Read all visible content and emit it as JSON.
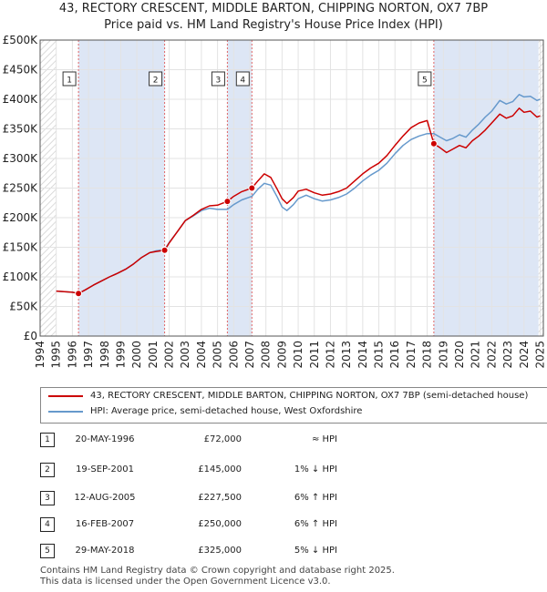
{
  "chart_data": {
    "type": "line",
    "title": "43, RECTORY CRESCENT, MIDDLE BARTON, CHIPPING NORTON, OX7 7BP",
    "subtitle": "Price paid vs. HM Land Registry's House Price Index (HPI)",
    "xlim": [
      1994,
      2025.2
    ],
    "ylim": [
      0,
      500000
    ],
    "yticks": [
      0,
      50000,
      100000,
      150000,
      200000,
      250000,
      300000,
      350000,
      400000,
      450000,
      500000
    ],
    "ytick_labels": [
      "£0",
      "£50K",
      "£100K",
      "£150K",
      "£200K",
      "£250K",
      "£300K",
      "£350K",
      "£400K",
      "£450K",
      "£500K"
    ],
    "xticks": [
      1994,
      1995,
      1996,
      1997,
      1998,
      1999,
      2000,
      2001,
      2002,
      2003,
      2004,
      2005,
      2006,
      2007,
      2008,
      2009,
      2010,
      2011,
      2012,
      2013,
      2014,
      2015,
      2016,
      2017,
      2018,
      2019,
      2020,
      2021,
      2022,
      2023,
      2024,
      2025
    ],
    "grid": true,
    "series": [
      {
        "name": "43, RECTORY CRESCENT, MIDDLE BARTON, CHIPPING NORTON, OX7 7BP (semi-detached house)",
        "color": "#cc0000",
        "x": [
          1995.0,
          1995.5,
          1996.0,
          1996.38,
          1996.8,
          1997.3,
          1997.8,
          1998.3,
          1998.8,
          1999.3,
          1999.8,
          2000.3,
          2000.8,
          2001.2,
          2001.72,
          2002.0,
          2002.5,
          2003.0,
          2003.5,
          2004.0,
          2004.5,
          2005.0,
          2005.61,
          2006.0,
          2006.5,
          2007.13,
          2007.5,
          2007.9,
          2008.3,
          2008.7,
          2009.0,
          2009.3,
          2009.7,
          2010.0,
          2010.5,
          2011.0,
          2011.5,
          2012.0,
          2012.5,
          2013.0,
          2013.5,
          2014.0,
          2014.5,
          2015.0,
          2015.5,
          2016.0,
          2016.5,
          2017.0,
          2017.5,
          2018.0,
          2018.41,
          2018.8,
          2019.2,
          2019.6,
          2020.0,
          2020.4,
          2020.8,
          2021.2,
          2021.6,
          2022.0,
          2022.5,
          2022.9,
          2023.3,
          2023.7,
          2024.0,
          2024.4,
          2024.8,
          2025.0
        ],
        "values": [
          76000,
          75000,
          74000,
          72000,
          78000,
          86000,
          93000,
          100000,
          106000,
          113000,
          122000,
          133000,
          141000,
          143000,
          145000,
          157000,
          176000,
          195000,
          204000,
          214000,
          220000,
          221000,
          227500,
          236000,
          244000,
          250000,
          262000,
          274000,
          268000,
          248000,
          232000,
          224000,
          234000,
          245000,
          248000,
          242000,
          238000,
          240000,
          244000,
          250000,
          262000,
          274000,
          284000,
          292000,
          305000,
          322000,
          338000,
          352000,
          360000,
          364000,
          325000,
          318000,
          310000,
          316000,
          322000,
          318000,
          330000,
          338000,
          348000,
          360000,
          375000,
          368000,
          372000,
          385000,
          378000,
          380000,
          370000,
          372000
        ]
      },
      {
        "name": "HPI: Average price, semi-detached house, West Oxfordshire",
        "color": "#6699cc",
        "x": [
          1995.0,
          1995.5,
          1996.0,
          1996.38,
          1996.8,
          1997.3,
          1997.8,
          1998.3,
          1998.8,
          1999.3,
          1999.8,
          2000.3,
          2000.8,
          2001.2,
          2001.72,
          2002.0,
          2002.5,
          2003.0,
          2003.5,
          2004.0,
          2004.5,
          2005.0,
          2005.61,
          2006.0,
          2006.5,
          2007.13,
          2007.5,
          2007.9,
          2008.3,
          2008.7,
          2009.0,
          2009.3,
          2009.7,
          2010.0,
          2010.5,
          2011.0,
          2011.5,
          2012.0,
          2012.5,
          2013.0,
          2013.5,
          2014.0,
          2014.5,
          2015.0,
          2015.5,
          2016.0,
          2016.5,
          2017.0,
          2017.5,
          2018.0,
          2018.41,
          2018.8,
          2019.2,
          2019.6,
          2020.0,
          2020.4,
          2020.8,
          2021.2,
          2021.6,
          2022.0,
          2022.5,
          2022.9,
          2023.3,
          2023.7,
          2024.0,
          2024.4,
          2024.8,
          2025.0
        ],
        "values": [
          76000,
          75000,
          74000,
          72000,
          78000,
          86000,
          93000,
          100000,
          106000,
          113000,
          122000,
          133000,
          141000,
          144000,
          146000,
          158000,
          176000,
          195000,
          203000,
          212000,
          216000,
          214000,
          214000,
          222000,
          230000,
          236000,
          248000,
          258000,
          255000,
          235000,
          218000,
          212000,
          222000,
          232000,
          238000,
          232000,
          228000,
          230000,
          234000,
          240000,
          250000,
          262000,
          272000,
          280000,
          292000,
          308000,
          322000,
          332000,
          338000,
          342000,
          342000,
          336000,
          330000,
          334000,
          340000,
          336000,
          348000,
          358000,
          370000,
          380000,
          398000,
          392000,
          396000,
          408000,
          404000,
          405000,
          398000,
          400000
        ]
      }
    ],
    "sales": [
      {
        "n": "1",
        "x": 1996.38,
        "y": 72000
      },
      {
        "n": "2",
        "x": 2001.72,
        "y": 145000
      },
      {
        "n": "3",
        "x": 2005.61,
        "y": 227500
      },
      {
        "n": "4",
        "x": 2007.13,
        "y": 250000
      },
      {
        "n": "5",
        "x": 2018.41,
        "y": 325000
      }
    ],
    "shaded_periods": [
      [
        1996.38,
        2001.72
      ],
      [
        2005.61,
        2007.13
      ],
      [
        2018.41,
        2025.2
      ]
    ],
    "hatched_ranges": [
      [
        1994,
        1995
      ],
      [
        2024.9,
        2025.2
      ]
    ]
  },
  "legend": {
    "property_label": "43, RECTORY CRESCENT, MIDDLE BARTON, CHIPPING NORTON, OX7 7BP (semi-detached house)",
    "hpi_label": "HPI: Average price, semi-detached house, West Oxfordshire",
    "property_color": "#cc0000",
    "hpi_color": "#6699cc"
  },
  "transactions": [
    {
      "num": "1",
      "date": "20-MAY-1996",
      "price": "£72,000",
      "hpi": "≈ HPI"
    },
    {
      "num": "2",
      "date": "19-SEP-2001",
      "price": "£145,000",
      "hpi": "1% ↓ HPI"
    },
    {
      "num": "3",
      "date": "12-AUG-2005",
      "price": "£227,500",
      "hpi": "6% ↑ HPI"
    },
    {
      "num": "4",
      "date": "16-FEB-2007",
      "price": "£250,000",
      "hpi": "6% ↑ HPI"
    },
    {
      "num": "5",
      "date": "29-MAY-2018",
      "price": "£325,000",
      "hpi": "5% ↓ HPI"
    }
  ],
  "footer": {
    "line1": "Contains HM Land Registry data © Crown copyright and database right 2025.",
    "line2": "This data is licensed under the Open Government Licence v3.0."
  }
}
